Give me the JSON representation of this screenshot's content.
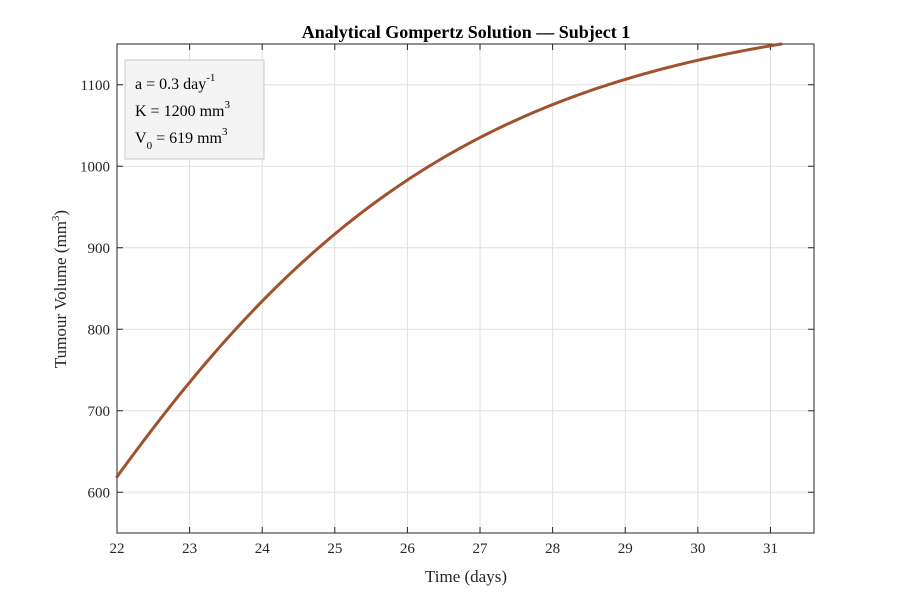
{
  "chart_data": {
    "type": "line",
    "title": "Analytical Gompertz Solution — Subject 1",
    "xlabel": "Time (days)",
    "ylabel": {
      "base": "Tumour Volume (mm",
      "sup": "3",
      "close": ")"
    },
    "xlim": [
      22,
      31.6
    ],
    "ylim": [
      550,
      1150
    ],
    "xticks": [
      22,
      23,
      24,
      25,
      26,
      27,
      28,
      29,
      30,
      31
    ],
    "yticks": [
      600,
      700,
      800,
      900,
      1000,
      1100
    ],
    "grid": true,
    "legend_placement": "top-left",
    "line_color": "#a0522d",
    "annotations": [
      {
        "text": "a = 0.3 day",
        "sup": "-1",
        "sub": ""
      },
      {
        "text": "K = 1200 mm",
        "sup": "3",
        "sub": ""
      },
      {
        "text": "V",
        "sub": "0",
        "rest": " = 619 mm",
        "sup": "3"
      }
    ],
    "model": {
      "a": 0.3,
      "K": 1200,
      "V0": 619,
      "t0": 22
    },
    "series": [
      {
        "x": [
          22,
          22.5,
          23,
          23.5,
          24,
          24.5,
          25,
          25.5,
          26,
          26.5,
          27,
          27.5,
          28,
          28.5,
          29,
          29.5,
          30,
          30.5,
          31,
          31.15
        ],
        "values": [
          619,
          679,
          733,
          785,
          832,
          876,
          916,
          952,
          984,
          1012,
          1037,
          1058,
          1077,
          1093,
          1107,
          1119,
          1129,
          1138,
          1146,
          1148
        ]
      }
    ]
  }
}
